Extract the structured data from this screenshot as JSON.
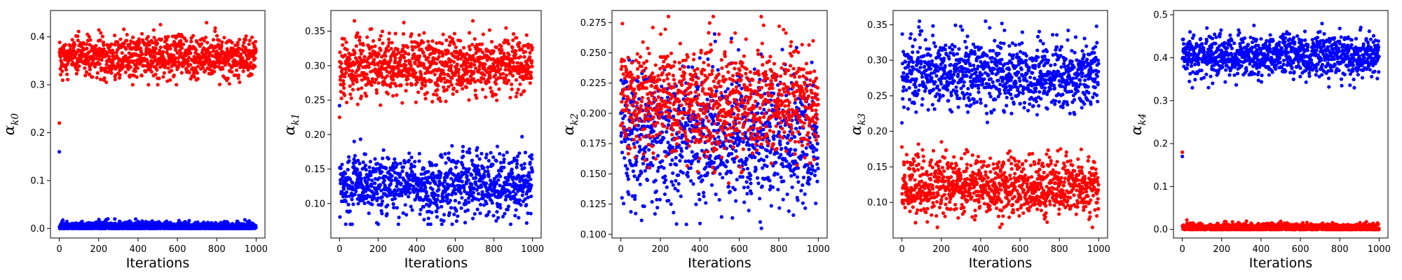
{
  "figure": {
    "background": "#ffffff"
  },
  "colors": {
    "red": "#ff0000",
    "blue": "#0000ff",
    "axis": "#000000"
  },
  "chart_data": [
    {
      "type": "scatter",
      "xlabel": "Iterations",
      "ylabel_symbol": "α",
      "ylabel_sub": "k0",
      "xlim": [
        -45,
        1045
      ],
      "ylim": [
        -0.02,
        0.455
      ],
      "xticks": [
        0,
        200,
        400,
        600,
        800,
        1000
      ],
      "yticks": [
        0.0,
        0.1,
        0.2,
        0.3,
        0.4
      ],
      "ytick_labels": [
        "0.0",
        "0.1",
        "0.2",
        "0.3",
        "0.4"
      ],
      "n_points": 1000,
      "series": [
        {
          "color": "red",
          "initial": 0.22,
          "mean": 0.357,
          "sd": 0.022,
          "min": 0.3,
          "max": 0.44
        },
        {
          "color": "blue",
          "initial": 0.16,
          "mean": 0.004,
          "sd": 0.005,
          "min": 0.0,
          "max": 0.032
        }
      ]
    },
    {
      "type": "scatter",
      "xlabel": "Iterations",
      "ylabel_symbol": "α",
      "ylabel_sub": "k1",
      "xlim": [
        -45,
        1045
      ],
      "ylim": [
        0.05,
        0.38
      ],
      "xticks": [
        0,
        200,
        400,
        600,
        800,
        1000
      ],
      "yticks": [
        0.1,
        0.15,
        0.2,
        0.25,
        0.3,
        0.35
      ],
      "ytick_labels": [
        "0.10",
        "0.15",
        "0.20",
        "0.25",
        "0.30",
        "0.35"
      ],
      "n_points": 1000,
      "series": [
        {
          "color": "red",
          "initial": 0.225,
          "mean": 0.3,
          "sd": 0.022,
          "min": 0.228,
          "max": 0.365
        },
        {
          "color": "blue",
          "initial": 0.242,
          "mean": 0.128,
          "sd": 0.022,
          "min": 0.07,
          "max": 0.197
        }
      ]
    },
    {
      "type": "scatter",
      "xlabel": "Iterations",
      "ylabel_symbol": "α",
      "ylabel_sub": "k2",
      "xlim": [
        -45,
        1045
      ],
      "ylim": [
        0.097,
        0.285
      ],
      "xticks": [
        0,
        200,
        400,
        600,
        800,
        1000
      ],
      "yticks": [
        0.1,
        0.125,
        0.15,
        0.175,
        0.2,
        0.225,
        0.25,
        0.275
      ],
      "ytick_labels": [
        "0.100",
        "0.125",
        "0.150",
        "0.175",
        "0.200",
        "0.225",
        "0.250",
        "0.275"
      ],
      "n_points": 1000,
      "series": [
        {
          "color": "blue",
          "initial": 0.2,
          "mean": 0.18,
          "sd": 0.028,
          "min": 0.105,
          "max": 0.278
        },
        {
          "color": "red",
          "initial": 0.19,
          "mean": 0.21,
          "sd": 0.022,
          "min": 0.142,
          "max": 0.28
        }
      ]
    },
    {
      "type": "scatter",
      "xlabel": "Iterations",
      "ylabel_symbol": "α",
      "ylabel_sub": "k3",
      "xlim": [
        -45,
        1045
      ],
      "ylim": [
        0.05,
        0.37
      ],
      "xticks": [
        0,
        200,
        400,
        600,
        800,
        1000
      ],
      "yticks": [
        0.1,
        0.15,
        0.2,
        0.25,
        0.3,
        0.35
      ],
      "ytick_labels": [
        "0.10",
        "0.15",
        "0.20",
        "0.25",
        "0.30",
        "0.35"
      ],
      "n_points": 1000,
      "series": [
        {
          "color": "blue",
          "initial": 0.212,
          "mean": 0.28,
          "sd": 0.024,
          "min": 0.205,
          "max": 0.355
        },
        {
          "color": "red",
          "initial": 0.178,
          "mean": 0.123,
          "sd": 0.021,
          "min": 0.065,
          "max": 0.19
        }
      ]
    },
    {
      "type": "scatter",
      "xlabel": "Iterations",
      "ylabel_symbol": "α",
      "ylabel_sub": "k4",
      "xlim": [
        -45,
        1045
      ],
      "ylim": [
        -0.02,
        0.51
      ],
      "xticks": [
        0,
        200,
        400,
        600,
        800,
        1000
      ],
      "yticks": [
        0.0,
        0.1,
        0.2,
        0.3,
        0.4,
        0.5
      ],
      "ytick_labels": [
        "0.0",
        "0.1",
        "0.2",
        "0.3",
        "0.4",
        "0.5"
      ],
      "n_points": 1000,
      "series": [
        {
          "color": "blue",
          "initial": 0.17,
          "mean": 0.405,
          "sd": 0.025,
          "min": 0.33,
          "max": 0.485
        },
        {
          "color": "red",
          "initial": 0.18,
          "mean": 0.004,
          "sd": 0.005,
          "min": 0.0,
          "max": 0.025
        }
      ]
    }
  ]
}
